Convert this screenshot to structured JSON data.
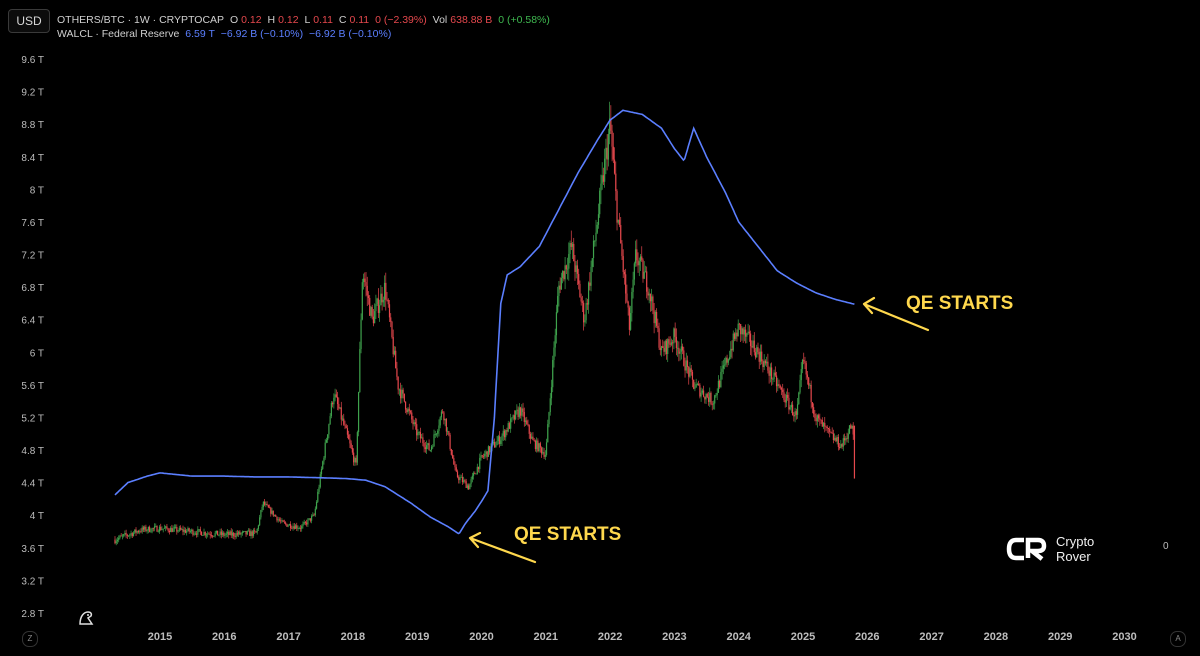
{
  "scale_button": "USD",
  "legend": {
    "series1": {
      "name": "OTHERS/BTC · 1W · CRYPTOCAP",
      "o_label": "O",
      "o_value": "0.12",
      "h_label": "H",
      "h_value": "0.12",
      "l_label": "L",
      "l_value": "0.11",
      "c_label": "C",
      "c_value": "0.11",
      "change": "0 (−2.39%)",
      "vol_label": "Vol",
      "vol_value": "638.88 B",
      "vol_change": "0 (+0.58%)"
    },
    "series2": {
      "name": "WALCL · Federal Reserve",
      "value": "6.59 T",
      "change1": "−6.92 B (−0.10%)",
      "change2": "−6.92 B (−0.10%)"
    }
  },
  "annotations": [
    "QE STARTS",
    "QE STARTS"
  ],
  "watermark": {
    "line1": "Crypto",
    "line2": "Rover"
  },
  "right_axis_label": "0",
  "corner_left": "Z",
  "corner_right": "A",
  "colors": {
    "walcl_line": "#5b7fff",
    "candle_up": "#3fa34d",
    "candle_down": "#e5484d",
    "annotation": "#ffd84d"
  },
  "chart_data": {
    "type": "line",
    "y_ticks": [
      "9.6 T",
      "9.2 T",
      "8.8 T",
      "8.4 T",
      "8 T",
      "7.6 T",
      "7.2 T",
      "6.8 T",
      "6.4 T",
      "6 T",
      "5.6 T",
      "5.2 T",
      "4.8 T",
      "4.4 T",
      "4 T",
      "3.6 T",
      "3.2 T",
      "2.8 T"
    ],
    "x_ticks": [
      "2015",
      "2016",
      "2017",
      "2018",
      "2019",
      "2020",
      "2021",
      "2022",
      "2023",
      "2024",
      "2025",
      "2026",
      "2027",
      "2028",
      "2029",
      "2030"
    ],
    "ylim": [
      2.8,
      9.6
    ],
    "series": [
      {
        "name": "WALCL · Federal Reserve",
        "x": [
          2014.3,
          2014.5,
          2014.8,
          2015.0,
          2015.5,
          2016.0,
          2016.5,
          2017.0,
          2017.5,
          2017.9,
          2018.2,
          2018.5,
          2018.9,
          2019.2,
          2019.5,
          2019.65,
          2019.75,
          2019.9,
          2020.0,
          2020.1,
          2020.2,
          2020.3,
          2020.4,
          2020.6,
          2020.9,
          2021.2,
          2021.5,
          2021.8,
          2022.0,
          2022.2,
          2022.5,
          2022.8,
          2023.0,
          2023.15,
          2023.3,
          2023.5,
          2023.8,
          2024.0,
          2024.3,
          2024.6,
          2024.9,
          2025.2,
          2025.5,
          2025.8
        ],
        "y": [
          4.25,
          4.4,
          4.48,
          4.52,
          4.48,
          4.48,
          4.47,
          4.47,
          4.46,
          4.45,
          4.43,
          4.35,
          4.15,
          3.98,
          3.85,
          3.77,
          3.9,
          4.05,
          4.17,
          4.3,
          5.2,
          6.6,
          6.95,
          7.05,
          7.3,
          7.75,
          8.2,
          8.6,
          8.85,
          8.97,
          8.92,
          8.75,
          8.5,
          8.35,
          8.75,
          8.4,
          7.95,
          7.6,
          7.3,
          7.0,
          6.85,
          6.73,
          6.65,
          6.59
        ]
      },
      {
        "name": "OTHERS/BTC · 1W · CRYPTOCAP",
        "x": [
          2014.3,
          2014.7,
          2015.0,
          2015.5,
          2016.0,
          2016.5,
          2016.6,
          2016.9,
          2017.2,
          2017.4,
          2017.7,
          2017.9,
          2018.05,
          2018.15,
          2018.3,
          2018.5,
          2018.7,
          2019.0,
          2019.2,
          2019.4,
          2019.6,
          2019.8,
          2020.0,
          2020.3,
          2020.6,
          2020.8,
          2021.0,
          2021.2,
          2021.4,
          2021.6,
          2021.8,
          2022.0,
          2022.1,
          2022.3,
          2022.4,
          2022.6,
          2022.8,
          2023.0,
          2023.3,
          2023.6,
          2023.9,
          2024.0,
          2024.3,
          2024.6,
          2024.9,
          2025.0,
          2025.2,
          2025.4,
          2025.6,
          2025.75,
          2025.8
        ],
        "y": [
          3.7,
          3.82,
          3.84,
          3.8,
          3.76,
          3.78,
          4.15,
          3.9,
          3.85,
          4.0,
          5.5,
          5.0,
          4.6,
          7.0,
          6.4,
          6.8,
          5.6,
          5.0,
          4.8,
          5.3,
          4.5,
          4.35,
          4.7,
          4.95,
          5.3,
          4.9,
          4.75,
          6.8,
          7.3,
          6.4,
          7.6,
          8.8,
          7.8,
          6.3,
          7.2,
          6.8,
          6.0,
          6.2,
          5.6,
          5.4,
          6.1,
          6.3,
          6.0,
          5.6,
          5.2,
          5.9,
          5.2,
          5.0,
          4.85,
          5.1,
          4.9
        ]
      }
    ]
  }
}
